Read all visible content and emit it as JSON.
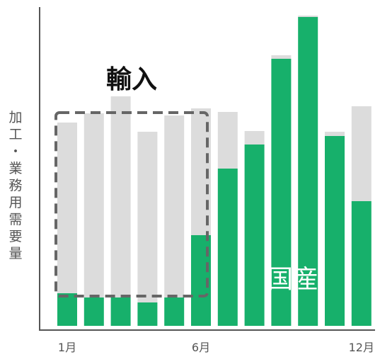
{
  "chart_data": {
    "type": "bar",
    "stacked": true,
    "ylabel": "加工・業務用需要量",
    "x_tick_labels": [
      "1月",
      "6月",
      "12月"
    ],
    "categories": [
      "1",
      "2",
      "3",
      "4",
      "5",
      "6",
      "7",
      "8",
      "9",
      "10",
      "11",
      "12"
    ],
    "series": [
      {
        "name": "国産",
        "color": "#17b06b",
        "values": [
          46,
          40,
          40,
          33,
          40,
          128,
          222,
          256,
          377,
          436,
          268,
          176
        ]
      },
      {
        "name": "輸入",
        "color": "#dcdcdc",
        "values": [
          241,
          260,
          284,
          241,
          257,
          179,
          80,
          19,
          5,
          2,
          6,
          134
        ]
      }
    ],
    "annotations": {
      "import_label": "輸入",
      "domestic_label": "国産"
    },
    "ylim": [
      0,
      440
    ],
    "grid": false
  }
}
